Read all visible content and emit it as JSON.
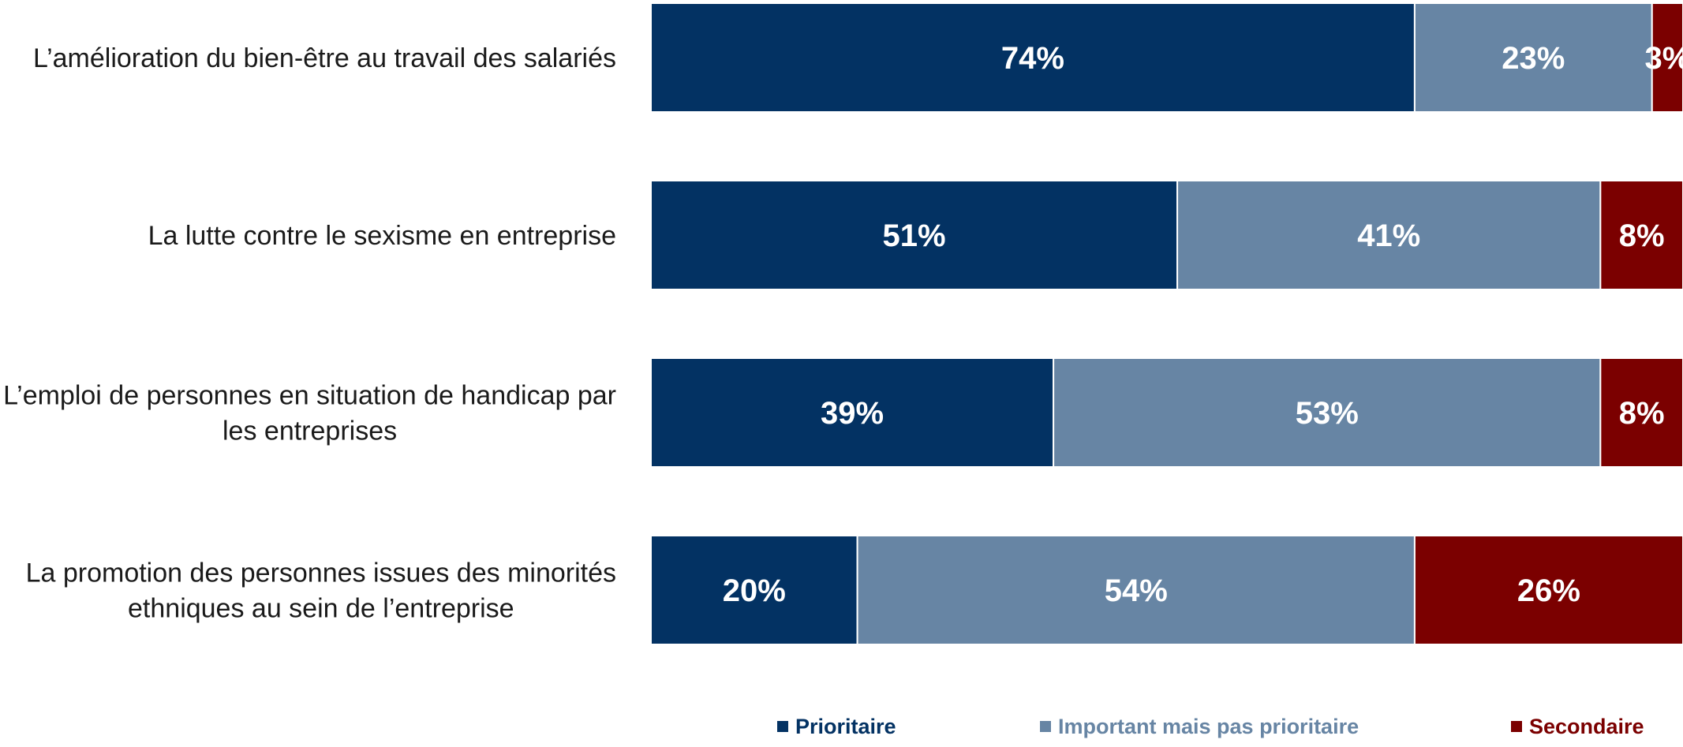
{
  "chart_data": {
    "type": "bar",
    "orientation": "horizontal",
    "stacked": true,
    "categories": [
      [
        "L’amélioration du bien-être au travail des salariés"
      ],
      [
        "La lutte contre le sexisme en entreprise"
      ],
      [
        "L’emploi de personnes en situation de handicap par",
        "les entreprises"
      ],
      [
        "La promotion des personnes issues des minorités",
        "ethniques au sein de l’entreprise"
      ]
    ],
    "series": [
      {
        "name": "Prioritaire",
        "color": "#033263",
        "values": [
          74,
          51,
          39,
          20
        ]
      },
      {
        "name": "Important mais pas prioritaire",
        "color": "#6785a4",
        "values": [
          23,
          41,
          53,
          54
        ]
      },
      {
        "name": "Secondaire",
        "color": "#7b0000",
        "values": [
          3,
          8,
          8,
          26
        ]
      }
    ],
    "value_suffix": "%",
    "xlim": [
      0,
      100
    ],
    "grid": false,
    "legend_position": "bottom"
  }
}
